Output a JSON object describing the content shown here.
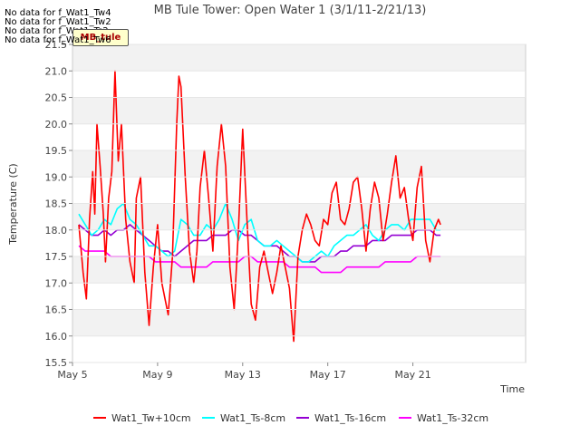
{
  "chart_data": {
    "type": "line",
    "title": "MB Tule Tower: Open Water 1 (3/1/11-2/21/13)",
    "xlabel": "Time",
    "ylabel": "Temperature (C)",
    "xlim": [
      5,
      26.3
    ],
    "ylim": [
      15.5,
      21.5
    ],
    "yticks": [
      15.5,
      16.0,
      16.5,
      17.0,
      17.5,
      18.0,
      18.5,
      19.0,
      19.5,
      20.0,
      20.5,
      21.0,
      21.5
    ],
    "ytick_labels": [
      "15.5",
      "16.0",
      "16.5",
      "17.0",
      "17.5",
      "18.0",
      "18.5",
      "19.0",
      "19.5",
      "20.0",
      "20.5",
      "21.0",
      "21.5"
    ],
    "xticks": [
      5,
      9,
      13,
      17,
      21
    ],
    "xtick_labels": [
      "May 5",
      "May 9",
      "May 13",
      "May 17",
      "May 21"
    ],
    "no_data_messages": [
      "No data for f_Wat1_Tw4",
      "No data for f_Wat1_Tw2",
      "No data for f_Wat1_Ts2",
      "No data for f_Wat1_Tw6"
    ],
    "site_label": "MB_tule",
    "series": [
      {
        "name": "Wat1_Tw+10cm",
        "color": "#ff0000",
        "x": [
          5.3,
          5.5,
          5.65,
          5.8,
          5.95,
          6.05,
          6.15,
          6.3,
          6.45,
          6.55,
          6.7,
          6.85,
          7.0,
          7.15,
          7.3,
          7.5,
          7.7,
          7.9,
          8.0,
          8.2,
          8.4,
          8.6,
          8.8,
          9.0,
          9.2,
          9.5,
          9.7,
          9.9,
          10.0,
          10.1,
          10.3,
          10.5,
          10.7,
          10.85,
          11.0,
          11.2,
          11.4,
          11.6,
          11.8,
          12.0,
          12.2,
          12.4,
          12.6,
          12.8,
          13.0,
          13.2,
          13.4,
          13.6,
          13.8,
          14.0,
          14.2,
          14.4,
          14.6,
          14.8,
          15.0,
          15.2,
          15.4,
          15.6,
          15.8,
          16.0,
          16.2,
          16.4,
          16.6,
          16.8,
          17.0,
          17.2,
          17.4,
          17.6,
          17.8,
          18.0,
          18.2,
          18.4,
          18.6,
          18.8,
          19.0,
          19.2,
          19.4,
          19.6,
          19.8,
          20.0,
          20.2,
          20.4,
          20.6,
          20.8,
          21.0,
          21.2,
          21.4,
          21.6,
          21.8,
          22.0,
          22.2,
          22.3
        ],
        "values": [
          18.1,
          17.2,
          16.7,
          18.2,
          19.1,
          18.3,
          20.0,
          19.2,
          18.3,
          17.4,
          18.6,
          19.1,
          21.0,
          19.3,
          20.0,
          18.2,
          17.4,
          17.0,
          18.6,
          19.0,
          17.2,
          16.2,
          17.3,
          18.1,
          17.0,
          16.4,
          17.5,
          20.0,
          20.9,
          20.7,
          19.0,
          17.6,
          17.0,
          17.6,
          18.8,
          19.5,
          18.6,
          17.6,
          19.2,
          20.0,
          19.2,
          17.3,
          16.5,
          18.0,
          19.9,
          18.2,
          16.6,
          16.3,
          17.3,
          17.6,
          17.2,
          16.8,
          17.2,
          17.7,
          17.3,
          16.9,
          15.9,
          17.5,
          18.0,
          18.3,
          18.1,
          17.8,
          17.7,
          18.2,
          18.1,
          18.7,
          18.9,
          18.2,
          18.1,
          18.4,
          18.9,
          19.0,
          18.4,
          17.6,
          18.4,
          18.9,
          18.6,
          17.8,
          18.3,
          18.9,
          19.4,
          18.6,
          18.8,
          18.2,
          17.8,
          18.8,
          19.2,
          17.8,
          17.4,
          18.0,
          18.2,
          18.1
        ]
      },
      {
        "name": "Wat1_Ts-8cm",
        "color": "#00ffff",
        "x": [
          5.3,
          5.6,
          5.9,
          6.2,
          6.5,
          6.8,
          7.1,
          7.4,
          7.7,
          8.0,
          8.3,
          8.6,
          8.9,
          9.2,
          9.5,
          9.8,
          10.1,
          10.4,
          10.7,
          11.0,
          11.3,
          11.6,
          11.9,
          12.2,
          12.5,
          12.8,
          13.1,
          13.4,
          13.7,
          14.0,
          14.3,
          14.6,
          14.9,
          15.2,
          15.5,
          15.8,
          16.1,
          16.4,
          16.7,
          17.0,
          17.3,
          17.6,
          17.9,
          18.2,
          18.5,
          18.8,
          19.1,
          19.4,
          19.7,
          20.0,
          20.3,
          20.6,
          20.9,
          21.2,
          21.5,
          21.8,
          22.1,
          22.3
        ],
        "values": [
          18.3,
          18.1,
          17.9,
          18.0,
          18.2,
          18.1,
          18.4,
          18.5,
          18.2,
          18.1,
          17.9,
          17.7,
          17.7,
          17.6,
          17.5,
          17.6,
          18.2,
          18.1,
          17.9,
          17.9,
          18.1,
          18.0,
          18.2,
          18.5,
          18.2,
          17.8,
          18.1,
          18.2,
          17.8,
          17.7,
          17.7,
          17.8,
          17.7,
          17.6,
          17.5,
          17.4,
          17.4,
          17.5,
          17.6,
          17.5,
          17.7,
          17.8,
          17.9,
          17.9,
          18.0,
          18.1,
          17.9,
          17.8,
          18.0,
          18.1,
          18.1,
          18.0,
          18.2,
          18.2,
          18.2,
          18.2,
          18.0,
          18.0
        ]
      },
      {
        "name": "Wat1_Ts-16cm",
        "color": "#9400d3",
        "x": [
          5.3,
          5.6,
          5.9,
          6.2,
          6.5,
          6.8,
          7.1,
          7.4,
          7.7,
          8.0,
          8.3,
          8.6,
          8.9,
          9.2,
          9.5,
          9.8,
          10.1,
          10.4,
          10.7,
          11.0,
          11.3,
          11.6,
          11.9,
          12.2,
          12.5,
          12.8,
          13.1,
          13.4,
          13.7,
          14.0,
          14.3,
          14.6,
          14.9,
          15.2,
          15.5,
          15.8,
          16.1,
          16.4,
          16.7,
          17.0,
          17.3,
          17.6,
          17.9,
          18.2,
          18.5,
          18.8,
          19.1,
          19.4,
          19.7,
          20.0,
          20.3,
          20.6,
          20.9,
          21.2,
          21.5,
          21.8,
          22.1,
          22.3
        ],
        "values": [
          18.1,
          18.0,
          17.9,
          17.9,
          18.0,
          17.9,
          18.0,
          18.0,
          18.1,
          18.0,
          17.9,
          17.8,
          17.7,
          17.6,
          17.6,
          17.5,
          17.6,
          17.7,
          17.8,
          17.8,
          17.8,
          17.9,
          17.9,
          17.9,
          18.0,
          18.0,
          17.9,
          17.9,
          17.8,
          17.7,
          17.7,
          17.7,
          17.6,
          17.5,
          17.5,
          17.4,
          17.4,
          17.4,
          17.5,
          17.5,
          17.5,
          17.6,
          17.6,
          17.7,
          17.7,
          17.7,
          17.8,
          17.8,
          17.8,
          17.9,
          17.9,
          17.9,
          17.9,
          18.0,
          18.0,
          18.0,
          17.9,
          17.9
        ]
      },
      {
        "name": "Wat1_Ts-32cm",
        "color": "#ff00ff",
        "x": [
          5.3,
          5.6,
          5.9,
          6.2,
          6.5,
          6.8,
          7.1,
          7.4,
          7.7,
          8.0,
          8.3,
          8.6,
          8.9,
          9.2,
          9.5,
          9.8,
          10.1,
          10.4,
          10.7,
          11.0,
          11.3,
          11.6,
          11.9,
          12.2,
          12.5,
          12.8,
          13.1,
          13.4,
          13.7,
          14.0,
          14.3,
          14.6,
          14.9,
          15.2,
          15.5,
          15.8,
          16.1,
          16.4,
          16.7,
          17.0,
          17.3,
          17.6,
          17.9,
          18.2,
          18.5,
          18.8,
          19.1,
          19.4,
          19.7,
          20.0,
          20.3,
          20.6,
          20.9,
          21.2,
          21.5,
          21.8,
          22.1,
          22.3
        ],
        "values": [
          17.7,
          17.6,
          17.6,
          17.6,
          17.6,
          17.5,
          17.5,
          17.5,
          17.5,
          17.5,
          17.5,
          17.5,
          17.4,
          17.4,
          17.4,
          17.4,
          17.3,
          17.3,
          17.3,
          17.3,
          17.3,
          17.4,
          17.4,
          17.4,
          17.4,
          17.4,
          17.5,
          17.5,
          17.4,
          17.4,
          17.4,
          17.4,
          17.4,
          17.3,
          17.3,
          17.3,
          17.3,
          17.3,
          17.2,
          17.2,
          17.2,
          17.2,
          17.3,
          17.3,
          17.3,
          17.3,
          17.3,
          17.3,
          17.4,
          17.4,
          17.4,
          17.4,
          17.4,
          17.5,
          17.5,
          17.5,
          17.5,
          17.5
        ]
      }
    ]
  }
}
